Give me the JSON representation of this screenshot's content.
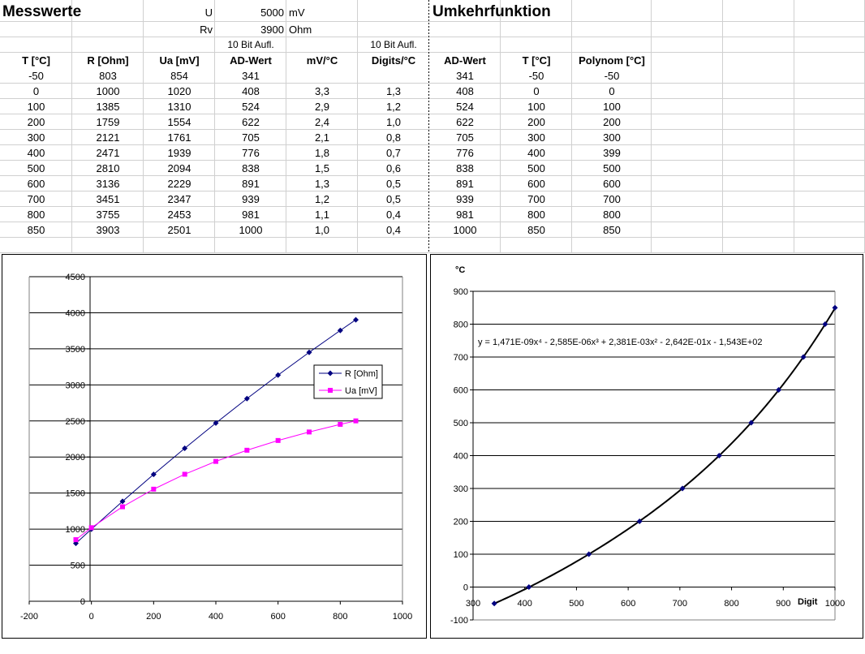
{
  "sheet": {
    "title_left": "Messwerte",
    "title_right": "Umkehrfunktion",
    "u_label": "U",
    "u_value": "5000",
    "u_unit": "mV",
    "rv_label": "Rv",
    "rv_value": "3900",
    "rv_unit": "Ohm",
    "aufl_ad": "10 Bit Aufl.",
    "aufl_digits": "10 Bit Aufl.",
    "headers_left": [
      "T [°C]",
      "R [Ohm]",
      "Ua [mV]",
      "AD-Wert",
      "mV/°C",
      "Digits/°C"
    ],
    "headers_right": [
      "AD-Wert",
      "T [°C]",
      "Polynom [°C]"
    ],
    "rows_left": [
      [
        "-50",
        "803",
        "854",
        "341",
        "",
        ""
      ],
      [
        "0",
        "1000",
        "1020",
        "408",
        "3,3",
        "1,3"
      ],
      [
        "100",
        "1385",
        "1310",
        "524",
        "2,9",
        "1,2"
      ],
      [
        "200",
        "1759",
        "1554",
        "622",
        "2,4",
        "1,0"
      ],
      [
        "300",
        "2121",
        "1761",
        "705",
        "2,1",
        "0,8"
      ],
      [
        "400",
        "2471",
        "1939",
        "776",
        "1,8",
        "0,7"
      ],
      [
        "500",
        "2810",
        "2094",
        "838",
        "1,5",
        "0,6"
      ],
      [
        "600",
        "3136",
        "2229",
        "891",
        "1,3",
        "0,5"
      ],
      [
        "700",
        "3451",
        "2347",
        "939",
        "1,2",
        "0,5"
      ],
      [
        "800",
        "3755",
        "2453",
        "981",
        "1,1",
        "0,4"
      ],
      [
        "850",
        "3903",
        "2501",
        "1000",
        "1,0",
        "0,4"
      ]
    ],
    "rows_right": [
      [
        "341",
        "-50",
        "-50"
      ],
      [
        "408",
        "0",
        "0"
      ],
      [
        "524",
        "100",
        "100"
      ],
      [
        "622",
        "200",
        "200"
      ],
      [
        "705",
        "300",
        "300"
      ],
      [
        "776",
        "400",
        "399"
      ],
      [
        "838",
        "500",
        "500"
      ],
      [
        "891",
        "600",
        "600"
      ],
      [
        "939",
        "700",
        "700"
      ],
      [
        "981",
        "800",
        "800"
      ],
      [
        "1000",
        "850",
        "850"
      ]
    ]
  },
  "chart_data": [
    {
      "type": "line",
      "title": "",
      "xlabel": "",
      "ylabel": "",
      "xlim": [
        -200,
        1000
      ],
      "ylim": [
        0,
        4500
      ],
      "xticks": [
        "-200",
        "0",
        "200",
        "400",
        "600",
        "800",
        "1000"
      ],
      "yticks": [
        "0",
        "500",
        "1000",
        "1500",
        "2000",
        "2500",
        "3000",
        "3500",
        "4000",
        "4500"
      ],
      "grid": "horizontal",
      "legend": "right",
      "x": [
        -50,
        0,
        100,
        200,
        300,
        400,
        500,
        600,
        700,
        800,
        850
      ],
      "series": [
        {
          "name": "R [Ohm]",
          "color": "#000080",
          "marker": "diamond",
          "values": [
            803,
            1000,
            1385,
            1759,
            2121,
            2471,
            2810,
            3136,
            3451,
            3755,
            3903
          ]
        },
        {
          "name": "Ua [mV]",
          "color": "#ff00ff",
          "marker": "square",
          "values": [
            854,
            1020,
            1310,
            1554,
            1761,
            1939,
            2094,
            2229,
            2347,
            2453,
            2501
          ]
        }
      ]
    },
    {
      "type": "scatter",
      "title": "",
      "xlabel": "Digit",
      "ylabel": "°C",
      "xlim": [
        300,
        1000
      ],
      "ylim": [
        -100,
        900
      ],
      "xticks": [
        "300",
        "400",
        "500",
        "600",
        "700",
        "800",
        "900",
        "1000"
      ],
      "yticks": [
        "-100",
        "0",
        "100",
        "200",
        "300",
        "400",
        "500",
        "600",
        "700",
        "800",
        "900"
      ],
      "grid": "horizontal",
      "equation": "y = 1,471E-09x⁴ - 2,585E-06x³ + 2,381E-03x² - 2,642E-01x - 1,543E+02",
      "trendline_coefficients": [
        1.471e-09,
        -2.585e-06,
        0.002381,
        -0.2642,
        -154.3
      ],
      "series": [
        {
          "name": "",
          "color": "#000080",
          "marker": "diamond",
          "x": [
            341,
            408,
            524,
            622,
            705,
            776,
            838,
            891,
            939,
            981,
            1000
          ],
          "values": [
            -50,
            0,
            100,
            200,
            300,
            400,
            500,
            600,
            700,
            800,
            850
          ]
        }
      ]
    }
  ]
}
